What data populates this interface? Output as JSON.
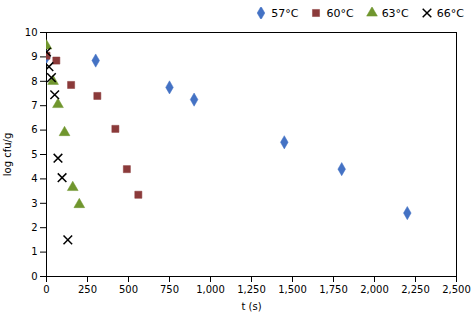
{
  "chart_data": {
    "type": "scatter",
    "xlabel": "t (s)",
    "ylabel": "log cfu/g",
    "xlim": [
      0,
      2500
    ],
    "ylim": [
      0,
      10
    ],
    "xticks": [
      0,
      250,
      500,
      750,
      1000,
      1250,
      1500,
      1750,
      2000,
      2250,
      2500
    ],
    "yticks": [
      0,
      1,
      2,
      3,
      4,
      5,
      6,
      7,
      8,
      9,
      10
    ],
    "grid": false,
    "legend": "upper right",
    "series": [
      {
        "name": "57°C",
        "color": "#4472C4",
        "marker": "diamond",
        "x": [
          0,
          300,
          750,
          900,
          1450,
          1800,
          2200
        ],
        "values": [
          9.0,
          8.85,
          7.75,
          7.25,
          5.5,
          4.4,
          2.6
        ]
      },
      {
        "name": "60°C",
        "color": "#8B3A3A",
        "marker": "square",
        "x": [
          0,
          60,
          150,
          310,
          420,
          490,
          560
        ],
        "values": [
          9.05,
          8.85,
          7.85,
          7.4,
          6.05,
          4.4,
          3.35
        ]
      },
      {
        "name": "63°C",
        "color": "#70962E",
        "marker": "triangle",
        "x": [
          0,
          40,
          70,
          110,
          160,
          200
        ],
        "values": [
          9.45,
          8.0,
          7.05,
          5.9,
          3.65,
          2.95
        ]
      },
      {
        "name": "66°C",
        "color": "#000000",
        "marker": "times",
        "x": [
          0,
          15,
          30,
          50,
          70,
          95,
          130
        ],
        "values": [
          9.2,
          8.6,
          8.15,
          7.45,
          4.85,
          4.05,
          1.5
        ]
      }
    ]
  }
}
